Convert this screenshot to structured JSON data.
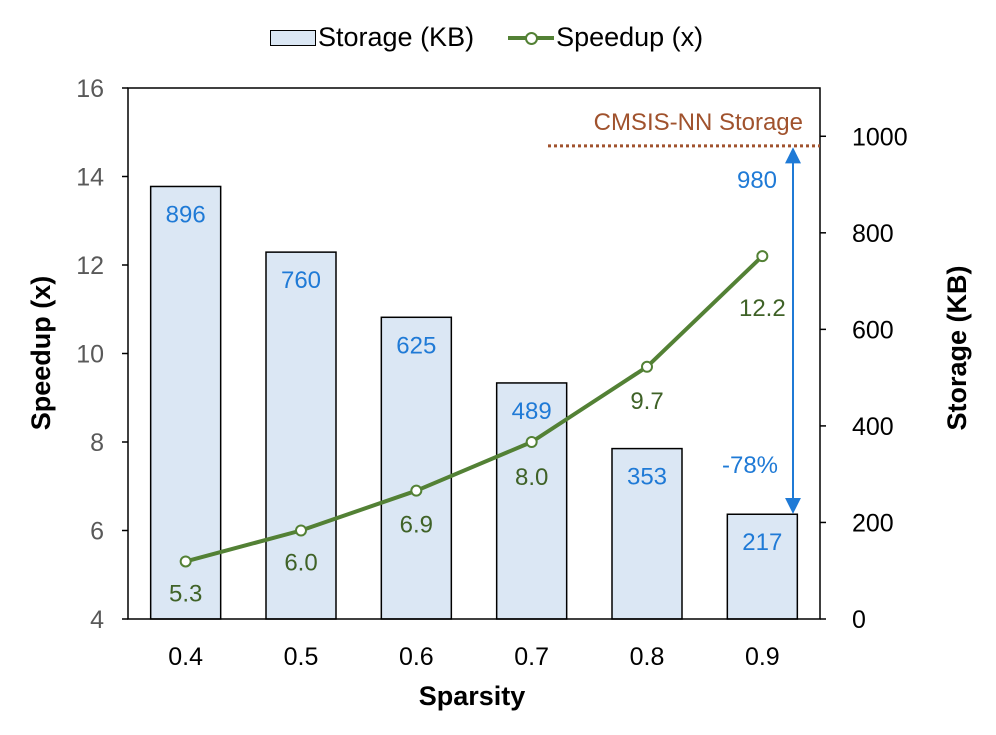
{
  "chart_data": {
    "type": "bar+line",
    "categories": [
      "0.4",
      "0.5",
      "0.6",
      "0.7",
      "0.8",
      "0.9"
    ],
    "series": [
      {
        "name": "Storage (KB)",
        "type": "bar",
        "axis": "right",
        "values": [
          896,
          760,
          625,
          489,
          353,
          217
        ],
        "labels": [
          "896",
          "760",
          "625",
          "489",
          "353",
          "217"
        ],
        "color": "#dbe7f4",
        "label_color": "#1f7ad6"
      },
      {
        "name": "Speedup (x)",
        "type": "line",
        "axis": "left",
        "values": [
          5.3,
          6.0,
          6.9,
          8.0,
          9.7,
          12.2
        ],
        "labels": [
          "5.3",
          "6.0",
          "6.9",
          "8.0",
          "9.7",
          "12.2"
        ],
        "color": "#538135"
      }
    ],
    "xlabel": "Sparsity",
    "ylabel_left": "Speedup (x)",
    "ylabel_right": "Storage (KB)",
    "ylim_left": [
      4,
      16
    ],
    "yticks_left": [
      "4",
      "6",
      "8",
      "10",
      "12",
      "14",
      "16"
    ],
    "ylim_right": [
      0,
      1100
    ],
    "yticks_right": [
      "0",
      "200",
      "400",
      "600",
      "800",
      "1000"
    ],
    "reference_line": {
      "label": "CMSIS-NN Storage",
      "value": 980,
      "color": "#a0522d"
    },
    "annotations": {
      "top_value": "980",
      "reduction": "-78%",
      "color": "#1f7ad6"
    },
    "legend": {
      "position": "top-center",
      "storage_label": "Storage (KB)",
      "speedup_label": "Speedup (x)"
    }
  }
}
